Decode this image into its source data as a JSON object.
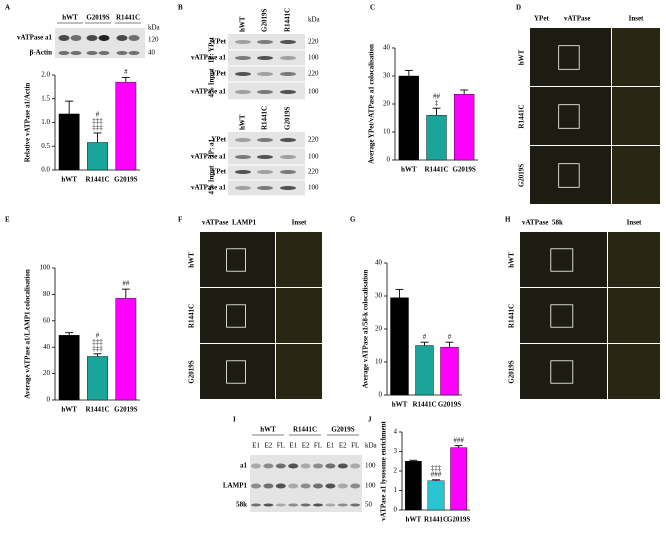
{
  "panel_letters": [
    "A",
    "B",
    "C",
    "D",
    "E",
    "F",
    "G",
    "H",
    "I",
    "J"
  ],
  "chart_data": [
    {
      "type": "bar",
      "ylabel": "Relative vATPase a1/Actin",
      "categories": [
        "hWT",
        "R1441C",
        "G2019S"
      ],
      "values": [
        1.18,
        0.58,
        1.85
      ],
      "errors": [
        0.27,
        0.2,
        0.1
      ],
      "colors": [
        "#000000",
        "#1aa59a",
        "#ff00ff"
      ],
      "annotations": [
        null,
        [
          "#",
          "‡‡‡",
          "‡‡‡"
        ],
        [
          "#"
        ]
      ],
      "ylim": [
        0,
        2
      ],
      "yticks": [
        {
          "value": 0,
          "label": "0.0"
        },
        0.5,
        {
          "value": 1,
          "label": "1.0"
        },
        1.5,
        {
          "value": 2,
          "label": "2.0"
        }
      ]
    },
    {
      "type": "bar",
      "ylabel": "Average YPet/vATPase a1 colocalisation",
      "categories": [
        "hWT",
        "R1441C",
        "G2019S"
      ],
      "values": [
        30,
        16,
        23.5
      ],
      "errors": [
        2,
        2.5,
        1.5
      ],
      "colors": [
        "#000000",
        "#1aa59a",
        "#ff00ff"
      ],
      "annotations": [
        null,
        [
          "##",
          "‡"
        ],
        null
      ],
      "ylim": [
        0,
        40
      ],
      "yticks": [
        0,
        10,
        20,
        30,
        40
      ]
    },
    {
      "type": "bar",
      "ylabel": "Average vATPase a1/LAMP1 colocalisation",
      "categories": [
        "hWT",
        "R1441C",
        "G2019S"
      ],
      "values": [
        49,
        33,
        77
      ],
      "errors": [
        2,
        2,
        7
      ],
      "colors": [
        "#000000",
        "#1aa59a",
        "#ff00ff"
      ],
      "annotations": [
        null,
        [
          "#",
          "‡‡‡",
          "‡‡‡"
        ],
        [
          "##"
        ]
      ],
      "ylim": [
        0,
        100
      ],
      "yticks": [
        0,
        20,
        40,
        60,
        80,
        100
      ]
    },
    {
      "type": "bar",
      "ylabel": "Average vATPase a1/58-k colocalisation",
      "categories": [
        "hWT",
        "R1441C",
        "G2019S"
      ],
      "values": [
        29.5,
        15,
        14.5
      ],
      "errors": [
        2.5,
        1,
        1.5
      ],
      "colors": [
        "#000000",
        "#1aa59a",
        "#ff00ff"
      ],
      "annotations": [
        null,
        [
          "#"
        ],
        [
          "#"
        ]
      ],
      "ylim": [
        0,
        40
      ],
      "yticks": [
        0,
        10,
        20,
        30,
        40
      ]
    },
    {
      "type": "bar",
      "ylabel": "vATPase a1 lysosome enrichment",
      "categories": [
        "hWT",
        "R1441C",
        "G2019S"
      ],
      "values": [
        2.5,
        1.5,
        3.2
      ],
      "errors": [
        0.05,
        0.05,
        0.1
      ],
      "colors": [
        "#000000",
        "#29c5d3",
        "#ff00ff"
      ],
      "annotations": [
        null,
        [
          "‡‡‡",
          "###"
        ],
        [
          "###"
        ]
      ],
      "ylim": [
        0,
        4
      ],
      "yticks": [
        0,
        1,
        2,
        3,
        4
      ]
    }
  ],
  "blot_a": {
    "lanes": [
      "hWT",
      "G2019S",
      "R1441C"
    ],
    "rows": [
      "vATPase a1",
      "β-Actin"
    ],
    "kda_title": "kDa",
    "kda": [
      120,
      40
    ]
  },
  "blot_b": {
    "kda_title": "kDa",
    "top": {
      "lanes": [
        "hWT",
        "G2019S",
        "R1441C"
      ],
      "sections": [
        "IP: YPet",
        "4% Input"
      ],
      "rows": [
        "YPet",
        "vATPase a1",
        "YPet",
        "vATPase a1"
      ],
      "kda": [
        220,
        100,
        220,
        100
      ]
    },
    "bottom": {
      "lanes": [
        "hWT",
        "R1441C",
        "G2019S"
      ],
      "sections": [
        "IP: a1",
        "4% Input"
      ],
      "rows": [
        "YPet",
        "vATPase a1",
        "YPet",
        "vATPase a1"
      ],
      "kda": [
        220,
        100,
        220,
        100
      ]
    }
  },
  "image_d": {
    "stains": [
      "YPet",
      "vATPase"
    ],
    "inset": "Inset",
    "rows": [
      "hWT",
      "R1441C",
      "G2019S"
    ]
  },
  "image_f": {
    "stains": [
      "vATPase",
      "LAMP1"
    ],
    "inset": "Inset",
    "rows": [
      "hWT",
      "R1441C",
      "G2019S"
    ]
  },
  "image_h": {
    "stains": [
      "vATPase",
      "58k"
    ],
    "inset": "Inset",
    "rows": [
      "hWT",
      "R1441C",
      "G2019S"
    ]
  },
  "blot_i": {
    "groups": [
      "hWT",
      "R1441C",
      "G2019S"
    ],
    "lanes": [
      "E1",
      "E2",
      "FL",
      "E1",
      "E2",
      "FL",
      "E1",
      "E2",
      "FL"
    ],
    "rows": [
      "a1",
      "LAMP1",
      "58k"
    ],
    "kda_title": "kDa",
    "kda": [
      100,
      100,
      50
    ]
  }
}
